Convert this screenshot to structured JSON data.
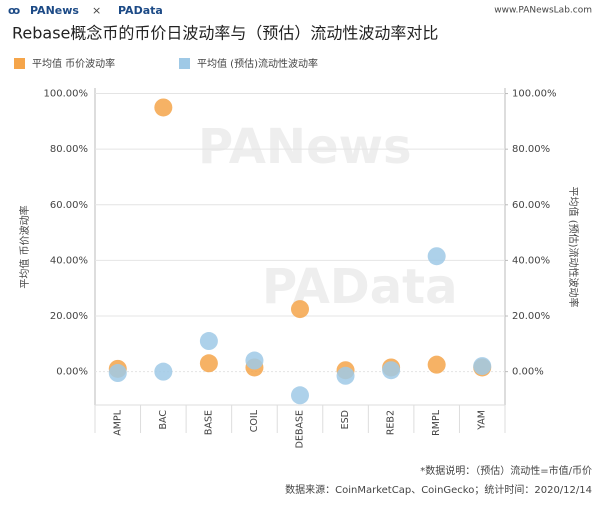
{
  "header": {
    "brand": [
      "PANews",
      "×",
      "PAData"
    ],
    "url": "www.PANewsLab.com",
    "watermark": [
      "PANews",
      "PAData"
    ]
  },
  "chart_data": {
    "type": "scatter",
    "title": "Rebase概念币的币价日波动率与（预估）流动性波动率对比",
    "ylabel": "平均值 币价波动率",
    "y2label": "平均值 (预估)流动性波动率",
    "categories": [
      "AMPL",
      "BAC",
      "BASE",
      "COIL",
      "DEBASE",
      "ESD",
      "REB2",
      "RMPL",
      "YAM"
    ],
    "series": [
      {
        "name": "平均值 币价波动率",
        "color": "#f5a54a",
        "values": [
          1,
          95,
          3,
          1.5,
          22.5,
          0.5,
          1.5,
          2.5,
          1.5
        ]
      },
      {
        "name": "平均值 (预估)流动性波动率",
        "color": "#9fc9e6",
        "axis": "y2",
        "values": [
          -0.5,
          0,
          11,
          4,
          -8.5,
          -1.5,
          0.5,
          41.5,
          2
        ]
      }
    ],
    "ylim": [
      -12,
      102
    ],
    "yticks": [
      {
        "value": 0,
        "label": "0.00%"
      },
      {
        "value": 20,
        "label": "20.00%"
      },
      {
        "value": 40,
        "label": "40.00%"
      },
      {
        "value": 60,
        "label": "60.00%"
      },
      {
        "value": 80,
        "label": "80.00%"
      },
      {
        "value": 100,
        "label": "100.00%"
      }
    ],
    "y2lim": [
      -12,
      102
    ],
    "y2ticks": [
      {
        "value": 0,
        "label": "0.00%"
      },
      {
        "value": 20,
        "label": "20.00%"
      },
      {
        "value": 40,
        "label": "40.00%"
      },
      {
        "value": 60,
        "label": "60.00%"
      },
      {
        "value": 80,
        "label": "80.00%"
      },
      {
        "value": 100,
        "label": "100.00%"
      }
    ],
    "grid": true,
    "notes": [
      "*数据说明：（预估）流动性=市值/币价",
      "数据来源：CoinMarketCap、CoinGecko；统计时间：2020/12/14"
    ]
  }
}
